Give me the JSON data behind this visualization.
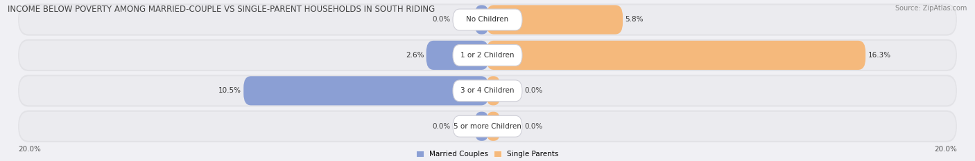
{
  "title": "INCOME BELOW POVERTY AMONG MARRIED-COUPLE VS SINGLE-PARENT HOUSEHOLDS IN SOUTH RIDING",
  "source": "Source: ZipAtlas.com",
  "categories": [
    "No Children",
    "1 or 2 Children",
    "3 or 4 Children",
    "5 or more Children"
  ],
  "married_values": [
    0.0,
    2.6,
    10.5,
    0.0
  ],
  "single_values": [
    5.8,
    16.3,
    0.0,
    0.0
  ],
  "married_color": "#8b9fd4",
  "single_color": "#f5b97c",
  "row_bg_color": "#e2e2e6",
  "row_inner_color": "#ebebef",
  "max_value": 20.0,
  "axis_label_left": "20.0%",
  "axis_label_right": "20.0%",
  "legend_married": "Married Couples",
  "legend_single": "Single Parents",
  "title_fontsize": 8.5,
  "source_fontsize": 7,
  "label_fontsize": 7.5,
  "category_fontsize": 7.5,
  "background_color": "#f0f0f4"
}
